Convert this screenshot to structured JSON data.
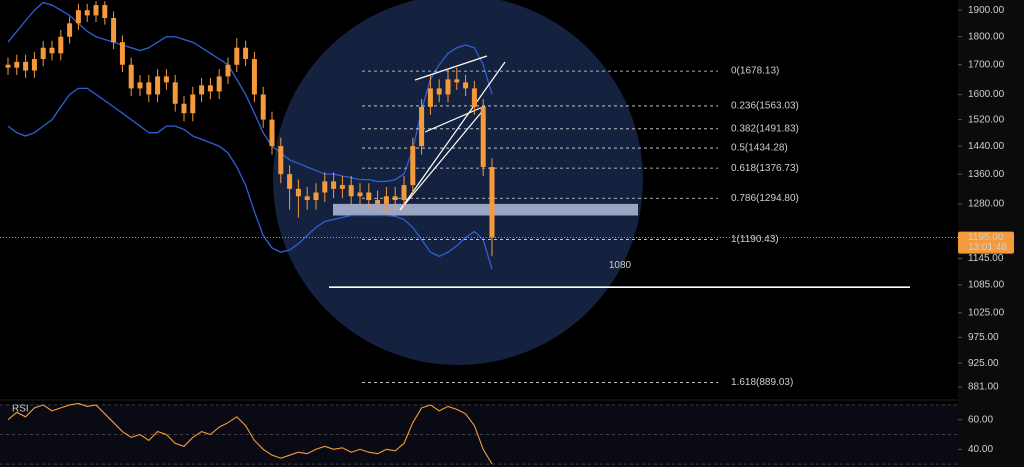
{
  "chart_data": {
    "type": "candlestick",
    "log_scale": true,
    "ylim": [
      1940,
      858
    ],
    "yticks": [
      {
        "value": 1900,
        "label": "1900.00"
      },
      {
        "value": 1800,
        "label": "1800.00"
      },
      {
        "value": 1700,
        "label": "1700.00"
      },
      {
        "value": 1600,
        "label": "1600.00"
      },
      {
        "value": 1520,
        "label": "1520.00"
      },
      {
        "value": 1440,
        "label": "1440.00"
      },
      {
        "value": 1360,
        "label": "1360.00"
      },
      {
        "value": 1280,
        "label": "1280.00"
      },
      {
        "value": 1145,
        "label": "1145.00"
      },
      {
        "value": 1085,
        "label": "1085.00"
      },
      {
        "value": 1025,
        "label": "1025.00"
      },
      {
        "value": 975,
        "label": "975.00"
      },
      {
        "value": 925,
        "label": "925.00"
      },
      {
        "value": 881,
        "label": "881.00"
      }
    ],
    "color": "#f59a3c",
    "open": [
      1700,
      1690,
      1710,
      1680,
      1720,
      1760,
      1740,
      1800,
      1850,
      1900,
      1880,
      1920,
      1870,
      1780,
      1700,
      1620,
      1640,
      1600,
      1660,
      1640,
      1570,
      1540,
      1600,
      1630,
      1610,
      1660,
      1700,
      1760,
      1720,
      1600,
      1520,
      1440,
      1360,
      1320,
      1300,
      1290,
      1310,
      1340,
      1320,
      1330,
      1300,
      1310,
      1290,
      1280,
      1300,
      1290,
      1330,
      1440,
      1560,
      1620,
      1600,
      1650,
      1640,
      1620,
      1560,
      1380
    ],
    "high": [
      1725,
      1735,
      1735,
      1745,
      1785,
      1785,
      1825,
      1875,
      1925,
      1925,
      1935,
      1935,
      1895,
      1805,
      1725,
      1665,
      1665,
      1685,
      1685,
      1665,
      1595,
      1625,
      1655,
      1655,
      1685,
      1725,
      1795,
      1785,
      1745,
      1625,
      1545,
      1465,
      1385,
      1345,
      1325,
      1335,
      1365,
      1365,
      1355,
      1355,
      1335,
      1335,
      1315,
      1325,
      1325,
      1355,
      1465,
      1585,
      1665,
      1650,
      1685,
      1690,
      1665,
      1645,
      1585,
      1405
    ],
    "low": [
      1665,
      1665,
      1655,
      1655,
      1695,
      1715,
      1715,
      1775,
      1825,
      1855,
      1855,
      1845,
      1755,
      1675,
      1595,
      1595,
      1575,
      1575,
      1615,
      1545,
      1515,
      1515,
      1575,
      1585,
      1585,
      1635,
      1675,
      1695,
      1575,
      1495,
      1415,
      1335,
      1265,
      1245,
      1265,
      1265,
      1285,
      1295,
      1295,
      1275,
      1275,
      1265,
      1255,
      1255,
      1265,
      1265,
      1305,
      1415,
      1535,
      1575,
      1575,
      1615,
      1595,
      1535,
      1355,
      1150
    ],
    "close": [
      1690,
      1710,
      1680,
      1720,
      1760,
      1740,
      1800,
      1850,
      1900,
      1880,
      1920,
      1870,
      1780,
      1700,
      1620,
      1640,
      1600,
      1660,
      1640,
      1570,
      1540,
      1600,
      1630,
      1610,
      1660,
      1700,
      1760,
      1720,
      1600,
      1520,
      1440,
      1360,
      1320,
      1300,
      1290,
      1310,
      1340,
      1320,
      1330,
      1300,
      1310,
      1290,
      1280,
      1300,
      1290,
      1330,
      1440,
      1560,
      1620,
      1600,
      1650,
      1640,
      1620,
      1560,
      1380,
      1195
    ],
    "bands": [
      {
        "color": "#2f5fd6",
        "values": [
          1780,
          1820,
          1860,
          1900,
          1930,
          1920,
          1900,
          1880,
          1850,
          1820,
          1800,
          1790,
          1780,
          1770,
          1760,
          1750,
          1760,
          1780,
          1800,
          1800,
          1790,
          1780,
          1760,
          1740,
          1720,
          1700,
          1650,
          1600,
          1540,
          1480,
          1440,
          1420,
          1400,
          1390,
          1380,
          1370,
          1360,
          1360,
          1355,
          1350,
          1345,
          1345,
          1340,
          1340,
          1345,
          1360,
          1430,
          1550,
          1650,
          1700,
          1740,
          1760,
          1770,
          1760,
          1700,
          1600
        ]
      },
      {
        "color": "#2f5fd6",
        "values": [
          1500,
          1480,
          1470,
          1480,
          1500,
          1520,
          1560,
          1600,
          1620,
          1620,
          1600,
          1580,
          1560,
          1540,
          1520,
          1500,
          1480,
          1480,
          1500,
          1500,
          1490,
          1470,
          1460,
          1450,
          1440,
          1420,
          1380,
          1330,
          1260,
          1200,
          1170,
          1160,
          1165,
          1180,
          1200,
          1220,
          1235,
          1240,
          1245,
          1250,
          1250,
          1250,
          1250,
          1250,
          1248,
          1240,
          1220,
          1190,
          1160,
          1150,
          1160,
          1175,
          1195,
          1210,
          1190,
          1120
        ]
      }
    ],
    "fib_levels": [
      {
        "label": "0(1678.13)",
        "value": 1678.13
      },
      {
        "label": "0.236(1563.03)",
        "value": 1563.03
      },
      {
        "label": "0.382(1491.83)",
        "value": 1491.83
      },
      {
        "label": "0.5(1434.28)",
        "value": 1434.28
      },
      {
        "label": "0.618(1376.73)",
        "value": 1376.73
      },
      {
        "label": "0.786(1294.80)",
        "value": 1294.8
      },
      {
        "label": "1(1190.43)",
        "value": 1190.43
      },
      {
        "label": "1.618(889.03)",
        "value": 889.03
      }
    ],
    "zone": [
      1250,
      1280
    ],
    "target": 1080,
    "last_price": {
      "value": 1195,
      "label": "1195.00",
      "countdown": "13:01:48"
    },
    "rsi": {
      "title": "RSI",
      "color": "#f59a3c",
      "ylim": [
        28,
        72
      ],
      "yticks": [
        {
          "value": 60,
          "label": "60.00"
        },
        {
          "value": 40,
          "label": "40.00"
        }
      ],
      "levels": [
        70,
        50,
        30
      ],
      "values": [
        60,
        65,
        62,
        68,
        70,
        66,
        68,
        70,
        71,
        69,
        70,
        64,
        58,
        52,
        48,
        50,
        46,
        52,
        50,
        44,
        42,
        48,
        52,
        50,
        55,
        58,
        62,
        56,
        46,
        40,
        36,
        34,
        36,
        38,
        37,
        40,
        42,
        40,
        41,
        38,
        40,
        38,
        37,
        40,
        39,
        44,
        58,
        68,
        70,
        66,
        69,
        67,
        64,
        56,
        40,
        30
      ]
    }
  }
}
